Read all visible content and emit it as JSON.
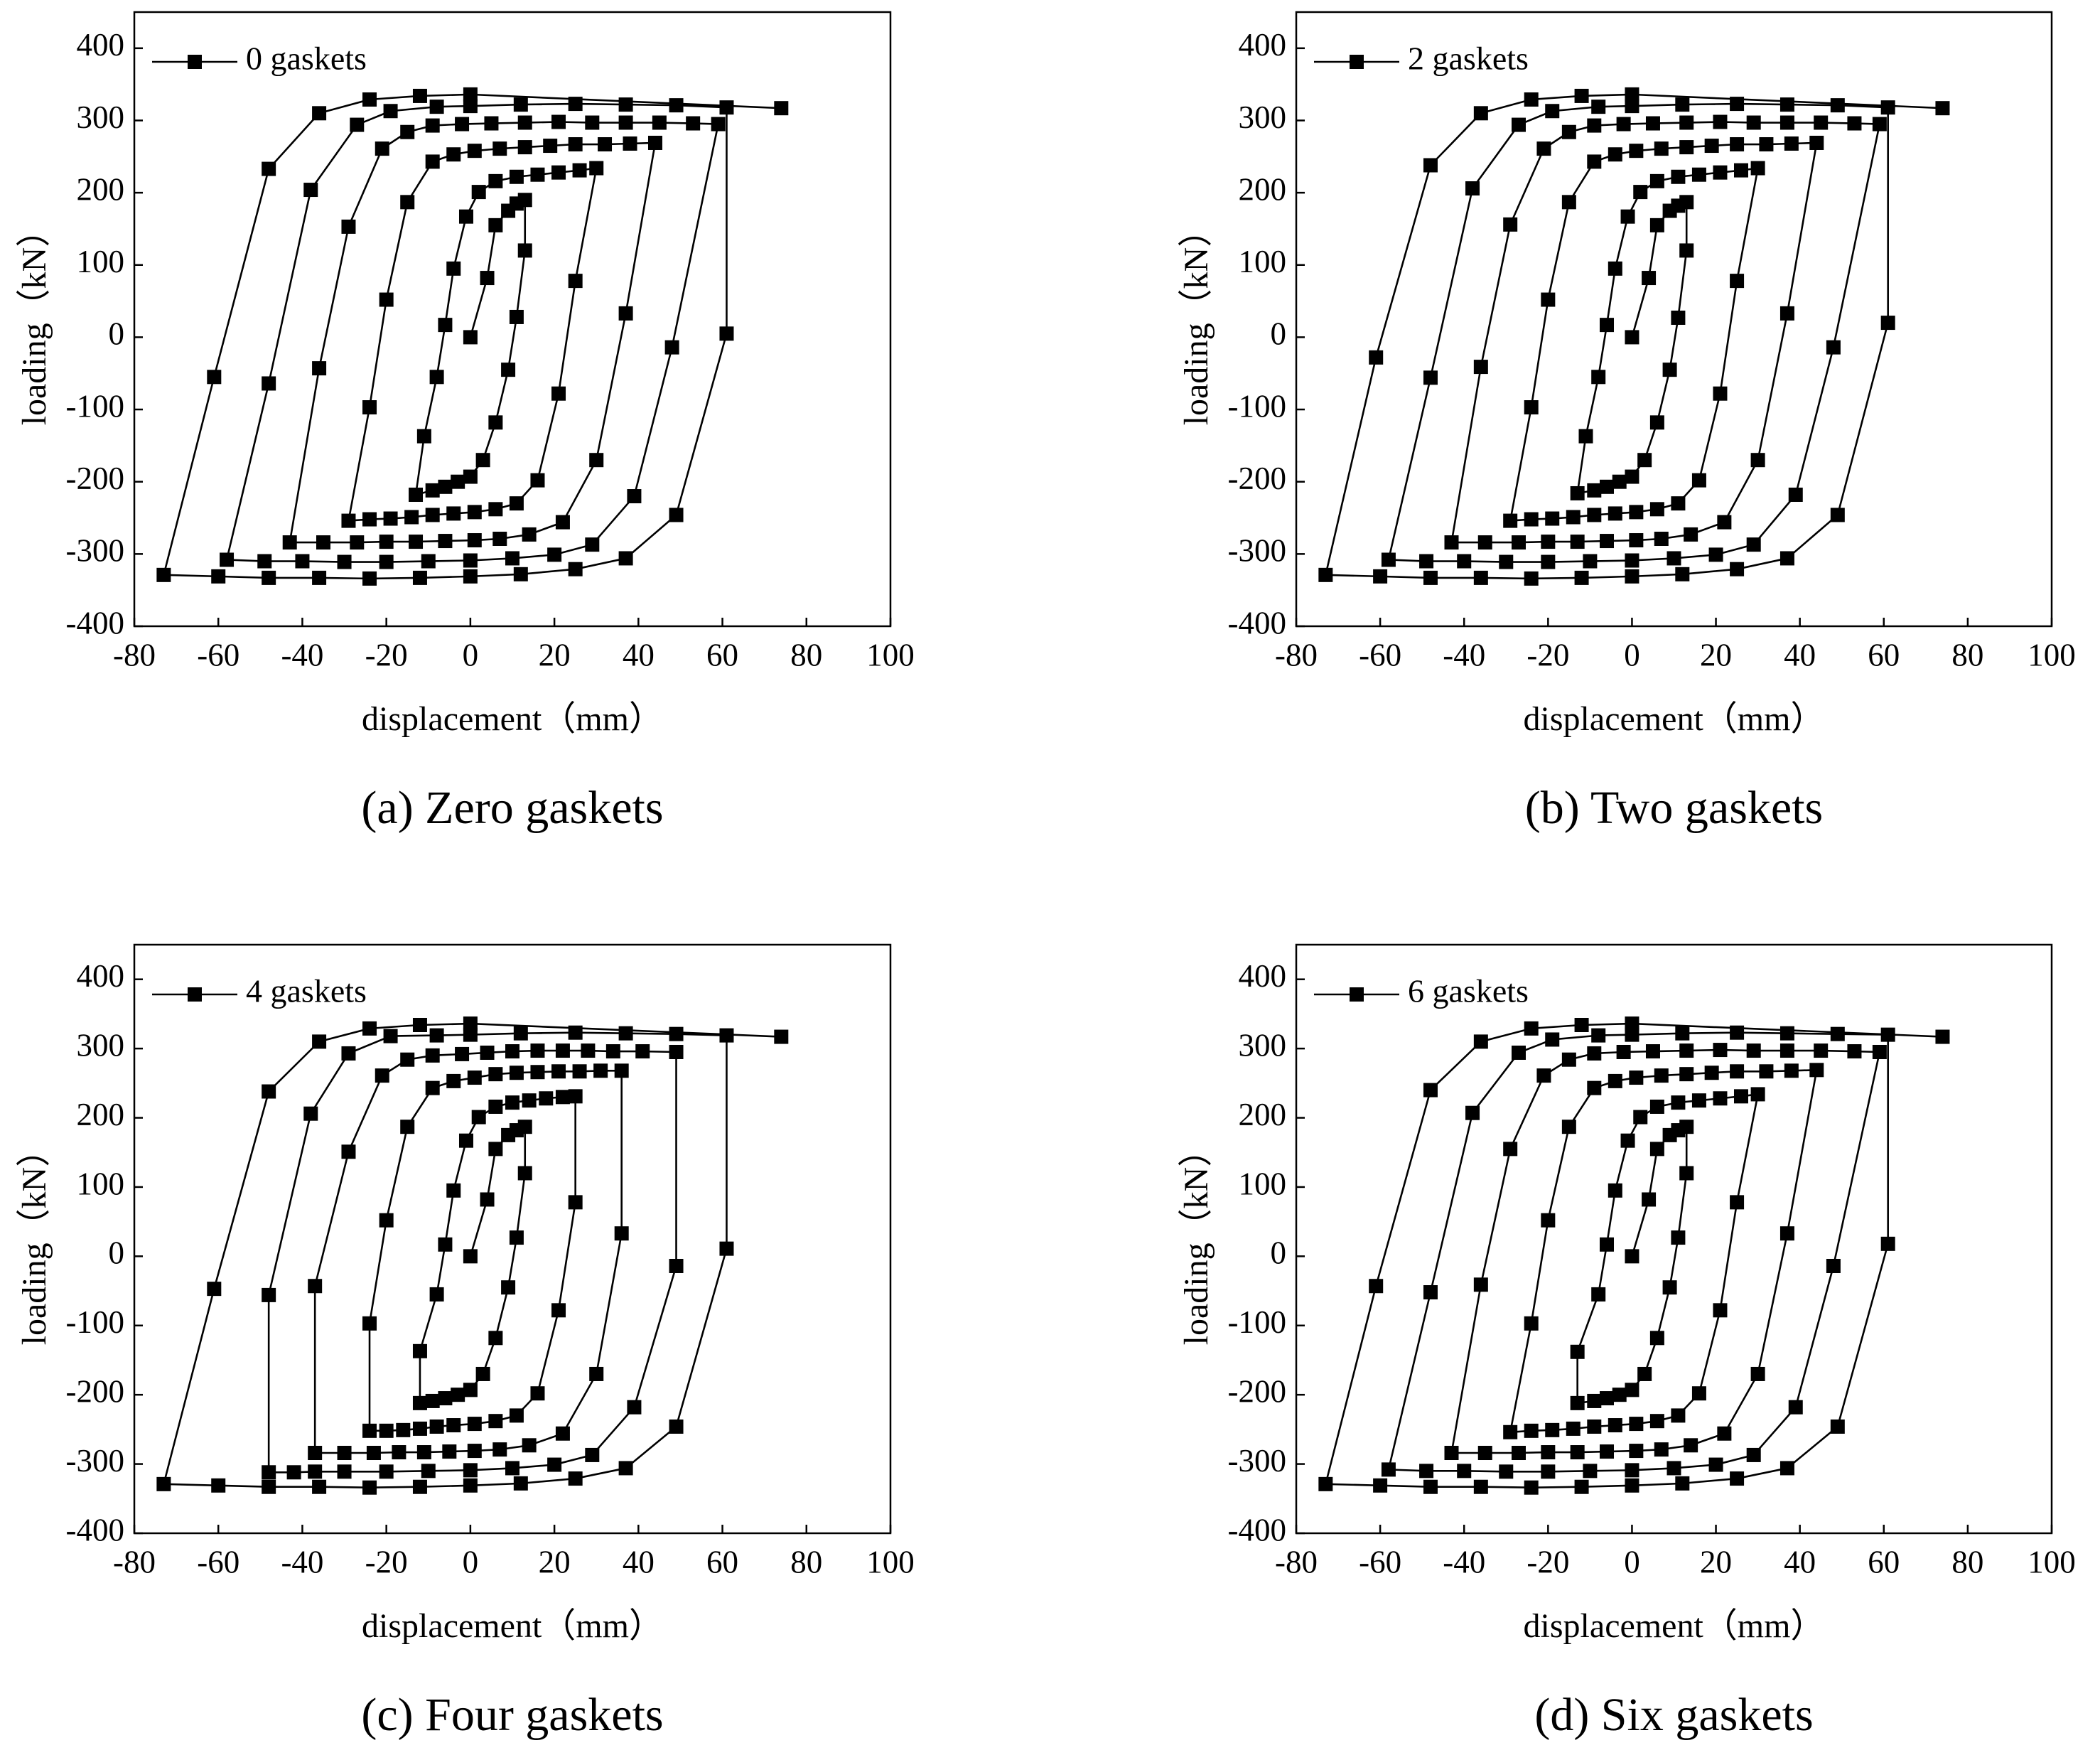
{
  "chart_data": [
    {
      "type": "line",
      "caption": "(a) Zero gaskets",
      "xlabel": "displacement（mm）",
      "ylabel": "loading（kN）",
      "xlim": [
        -80,
        100
      ],
      "ylim": [
        -400,
        450
      ],
      "xticks": [
        -80,
        -60,
        -40,
        -20,
        0,
        20,
        40,
        60,
        80,
        100
      ],
      "yticks": [
        -400,
        -300,
        -200,
        -100,
        0,
        100,
        200,
        300,
        400
      ],
      "legend": "upper left",
      "x": [
        0,
        4,
        6,
        9,
        11,
        13,
        13,
        11,
        9,
        6,
        3,
        0,
        -3,
        -6,
        -9,
        -13,
        -11,
        -8,
        -6,
        -4,
        -1,
        2,
        6,
        11,
        16,
        21,
        26,
        30,
        25,
        21,
        16,
        11,
        6,
        1,
        -4,
        -9,
        -14,
        -19,
        -24,
        -29,
        -24,
        -20,
        -15,
        -9,
        -4,
        1,
        7,
        13,
        19,
        25,
        32,
        38,
        44,
        37,
        30,
        22,
        14,
        7,
        1,
        -6,
        -13,
        -20,
        -27,
        -35,
        -43,
        -36,
        -29,
        -21,
        -15,
        -9,
        -2,
        5,
        13,
        21,
        29,
        37,
        45,
        53,
        59,
        48,
        39,
        29,
        20,
        10,
        0,
        -10,
        -20,
        -30,
        -40,
        -49,
        -58,
        -48,
        -38,
        -27,
        -19,
        -8,
        0,
        12,
        25,
        37,
        49,
        61,
        61,
        49,
        37,
        25,
        12,
        0,
        -12,
        -24,
        -36,
        -48,
        -60,
        -73,
        -61,
        -48,
        -36,
        -24,
        -12,
        0,
        74
      ],
      "series": [
        {
          "name": "0 gaskets",
          "color": "#000000",
          "values": [
            0,
            82,
            155,
            175,
            185,
            190,
            120,
            28,
            -45,
            -118,
            -170,
            -193,
            -200,
            -207,
            -212,
            -218,
            -137,
            -55,
            17,
            95,
            167,
            201,
            216,
            222,
            225,
            228,
            231,
            234,
            78,
            -78,
            -198,
            -230,
            -238,
            -242,
            -244,
            -246,
            -249,
            -251,
            -252,
            -254,
            -97,
            52,
            187,
            243,
            253,
            258,
            261,
            263,
            265,
            267,
            267,
            268,
            269,
            33,
            -170,
            -256,
            -273,
            -279,
            -281,
            -282,
            -283,
            -283,
            -284,
            -284,
            -284,
            -43,
            153,
            261,
            284,
            293,
            295,
            296,
            297,
            298,
            297,
            297,
            297,
            296,
            295,
            -14,
            -220,
            -287,
            -301,
            -306,
            -309,
            -310,
            -311,
            -311,
            -310,
            -310,
            -308,
            -64,
            204,
            294,
            313,
            319,
            320,
            322,
            323,
            322,
            321,
            318,
            5,
            -246,
            -306,
            -321,
            -328,
            -331,
            -333,
            -334,
            -333,
            -333,
            -331,
            -329,
            -55,
            233,
            310,
            329,
            334,
            336,
            317
          ]
        }
      ]
    },
    {
      "type": "line",
      "caption": "(b) Two gaskets",
      "xlabel": "displacement（mm）",
      "ylabel": "loading（kN）",
      "xlim": [
        -80,
        100
      ],
      "ylim": [
        -400,
        450
      ],
      "xticks": [
        -80,
        -60,
        -40,
        -20,
        0,
        20,
        40,
        60,
        80,
        100
      ],
      "yticks": [
        -400,
        -300,
        -200,
        -100,
        0,
        100,
        200,
        300,
        400
      ],
      "legend": "upper left",
      "x": [
        0,
        4,
        6,
        9,
        11,
        13,
        13,
        11,
        9,
        6,
        3,
        0,
        -3,
        -6,
        -9,
        -13,
        -11,
        -8,
        -6,
        -4,
        -1,
        2,
        6,
        11,
        16,
        21,
        26,
        30,
        25,
        21,
        16,
        11,
        6,
        1,
        -4,
        -9,
        -14,
        -19,
        -24,
        -29,
        -24,
        -20,
        -15,
        -9,
        -4,
        1,
        7,
        13,
        19,
        25,
        32,
        38,
        44,
        37,
        30,
        22,
        14,
        7,
        1,
        -6,
        -13,
        -20,
        -27,
        -35,
        -43,
        -36,
        -29,
        -21,
        -15,
        -9,
        -2,
        5,
        13,
        21,
        29,
        37,
        45,
        53,
        59,
        48,
        39,
        29,
        20,
        10,
        0,
        -10,
        -20,
        -30,
        -40,
        -49,
        -58,
        -48,
        -38,
        -27,
        -19,
        -8,
        0,
        12,
        25,
        37,
        49,
        61,
        61,
        49,
        37,
        25,
        12,
        0,
        -12,
        -24,
        -36,
        -48,
        -60,
        -73,
        -61,
        -48,
        -36,
        -24,
        -12,
        0,
        74
      ],
      "series": [
        {
          "name": "2 gaskets",
          "color": "#000000",
          "values": [
            0,
            82,
            155,
            175,
            182,
            187,
            120,
            27,
            -45,
            -118,
            -170,
            -193,
            -200,
            -207,
            -212,
            -216,
            -137,
            -55,
            17,
            95,
            167,
            201,
            216,
            222,
            225,
            228,
            231,
            234,
            78,
            -78,
            -198,
            -230,
            -238,
            -242,
            -244,
            -246,
            -249,
            -251,
            -252,
            -254,
            -97,
            52,
            187,
            243,
            253,
            258,
            261,
            263,
            265,
            267,
            267,
            268,
            269,
            33,
            -170,
            -256,
            -273,
            -279,
            -281,
            -282,
            -283,
            -283,
            -284,
            -284,
            -284,
            -41,
            156,
            261,
            284,
            293,
            295,
            296,
            297,
            298,
            297,
            297,
            297,
            296,
            295,
            -14,
            -218,
            -287,
            -301,
            -306,
            -309,
            -310,
            -311,
            -311,
            -310,
            -310,
            -308,
            -56,
            206,
            294,
            313,
            319,
            320,
            322,
            323,
            322,
            321,
            318,
            20,
            -246,
            -306,
            -321,
            -328,
            -331,
            -333,
            -334,
            -333,
            -333,
            -331,
            -329,
            -28,
            238,
            310,
            329,
            334,
            336,
            317
          ]
        }
      ]
    },
    {
      "type": "line",
      "caption": "(c) Four gaskets",
      "xlabel": "displacement（mm）",
      "ylabel": "loading（kN）",
      "xlim": [
        -80,
        100
      ],
      "ylim": [
        -400,
        450
      ],
      "xticks": [
        -80,
        -60,
        -40,
        -20,
        0,
        20,
        40,
        60,
        80,
        100
      ],
      "yticks": [
        -400,
        -300,
        -200,
        -100,
        0,
        100,
        200,
        300,
        400
      ],
      "legend": "upper left",
      "x": [
        0,
        4,
        6,
        9,
        11,
        13,
        13,
        11,
        9,
        6,
        3,
        0,
        -3,
        -6,
        -9,
        -12,
        -12,
        -8,
        -6,
        -4,
        -1,
        2,
        6,
        10,
        14,
        18,
        22,
        25,
        25,
        21,
        16,
        11,
        6,
        1,
        -4,
        -8,
        -12,
        -16,
        -20,
        -24,
        -24,
        -20,
        -15,
        -9,
        -4,
        1,
        6,
        11,
        16,
        21,
        26,
        31,
        36,
        36,
        30,
        22,
        14,
        7,
        1,
        -5,
        -11,
        -17,
        -23,
        -30,
        -37,
        -37,
        -29,
        -21,
        -15,
        -9,
        -2,
        4,
        10,
        16,
        22,
        28,
        34,
        41,
        49,
        49,
        39,
        29,
        20,
        10,
        0,
        -10,
        -20,
        -30,
        -37,
        -42,
        -48,
        -48,
        -38,
        -29,
        -19,
        -8,
        0,
        12,
        25,
        37,
        49,
        61,
        61,
        49,
        37,
        25,
        12,
        0,
        -12,
        -24,
        -36,
        -48,
        -60,
        -73,
        -61,
        -48,
        -36,
        -24,
        -12,
        0,
        74
      ],
      "series": [
        {
          "name": "4 gaskets",
          "color": "#000000",
          "values": [
            0,
            82,
            155,
            175,
            182,
            187,
            120,
            27,
            -45,
            -118,
            -170,
            -193,
            -200,
            -205,
            -209,
            -212,
            -137,
            -55,
            17,
            95,
            167,
            201,
            216,
            222,
            225,
            228,
            230,
            231,
            78,
            -78,
            -198,
            -230,
            -238,
            -242,
            -244,
            -246,
            -249,
            -251,
            -252,
            -252,
            -97,
            52,
            187,
            243,
            253,
            258,
            263,
            265,
            266,
            267,
            267,
            268,
            268,
            33,
            -170,
            -256,
            -273,
            -279,
            -281,
            -282,
            -283,
            -283,
            -284,
            -284,
            -284,
            -43,
            151,
            261,
            284,
            290,
            292,
            294,
            296,
            297,
            297,
            297,
            296,
            296,
            295,
            -14,
            -218,
            -287,
            -301,
            -306,
            -309,
            -310,
            -311,
            -311,
            -311,
            -312,
            -312,
            -56,
            206,
            293,
            318,
            319,
            320,
            322,
            323,
            322,
            321,
            319,
            11,
            -246,
            -306,
            -321,
            -328,
            -331,
            -333,
            -334,
            -333,
            -333,
            -331,
            -329,
            -47,
            238,
            310,
            329,
            334,
            336,
            317
          ]
        }
      ]
    },
    {
      "type": "line",
      "caption": "(d) Six gaskets",
      "xlabel": "displacement（mm）",
      "ylabel": "loading（kN）",
      "xlim": [
        -80,
        100
      ],
      "ylim": [
        -400,
        450
      ],
      "xticks": [
        -80,
        -60,
        -40,
        -20,
        0,
        20,
        40,
        60,
        80,
        100
      ],
      "yticks": [
        -400,
        -300,
        -200,
        -100,
        0,
        100,
        200,
        300,
        400
      ],
      "legend": "upper left",
      "x": [
        0,
        4,
        6,
        9,
        11,
        13,
        13,
        11,
        9,
        6,
        3,
        0,
        -3,
        -6,
        -9,
        -13,
        -13,
        -8,
        -6,
        -4,
        -1,
        2,
        6,
        11,
        16,
        21,
        26,
        30,
        25,
        21,
        16,
        11,
        6,
        1,
        -4,
        -9,
        -14,
        -19,
        -24,
        -29,
        -24,
        -20,
        -15,
        -9,
        -4,
        1,
        7,
        13,
        19,
        25,
        32,
        38,
        44,
        37,
        30,
        22,
        14,
        7,
        1,
        -6,
        -13,
        -20,
        -27,
        -35,
        -43,
        -36,
        -29,
        -21,
        -15,
        -9,
        -2,
        5,
        13,
        21,
        29,
        37,
        45,
        53,
        59,
        48,
        39,
        29,
        20,
        10,
        0,
        -10,
        -20,
        -30,
        -40,
        -49,
        -58,
        -48,
        -38,
        -27,
        -19,
        -8,
        0,
        12,
        25,
        37,
        49,
        61,
        61,
        49,
        37,
        25,
        12,
        0,
        -12,
        -24,
        -36,
        -48,
        -60,
        -73,
        -61,
        -48,
        -36,
        -24,
        -12,
        0,
        74
      ],
      "series": [
        {
          "name": "6 gaskets",
          "color": "#000000",
          "values": [
            0,
            82,
            155,
            175,
            182,
            187,
            120,
            27,
            -45,
            -118,
            -170,
            -193,
            -200,
            -205,
            -209,
            -212,
            -138,
            -55,
            17,
            95,
            167,
            201,
            216,
            222,
            225,
            228,
            231,
            234,
            78,
            -78,
            -198,
            -230,
            -238,
            -242,
            -244,
            -246,
            -249,
            -251,
            -252,
            -254,
            -97,
            52,
            187,
            243,
            253,
            258,
            261,
            263,
            265,
            267,
            267,
            268,
            269,
            33,
            -170,
            -256,
            -273,
            -279,
            -281,
            -282,
            -283,
            -283,
            -284,
            -284,
            -284,
            -41,
            155,
            261,
            284,
            293,
            295,
            296,
            297,
            298,
            297,
            297,
            297,
            296,
            295,
            -14,
            -218,
            -287,
            -301,
            -306,
            -309,
            -310,
            -311,
            -311,
            -310,
            -310,
            -308,
            -52,
            207,
            294,
            313,
            319,
            320,
            322,
            323,
            322,
            321,
            320,
            18,
            -246,
            -306,
            -321,
            -328,
            -331,
            -333,
            -334,
            -333,
            -333,
            -331,
            -329,
            -43,
            240,
            310,
            329,
            334,
            336,
            317
          ]
        }
      ]
    }
  ]
}
